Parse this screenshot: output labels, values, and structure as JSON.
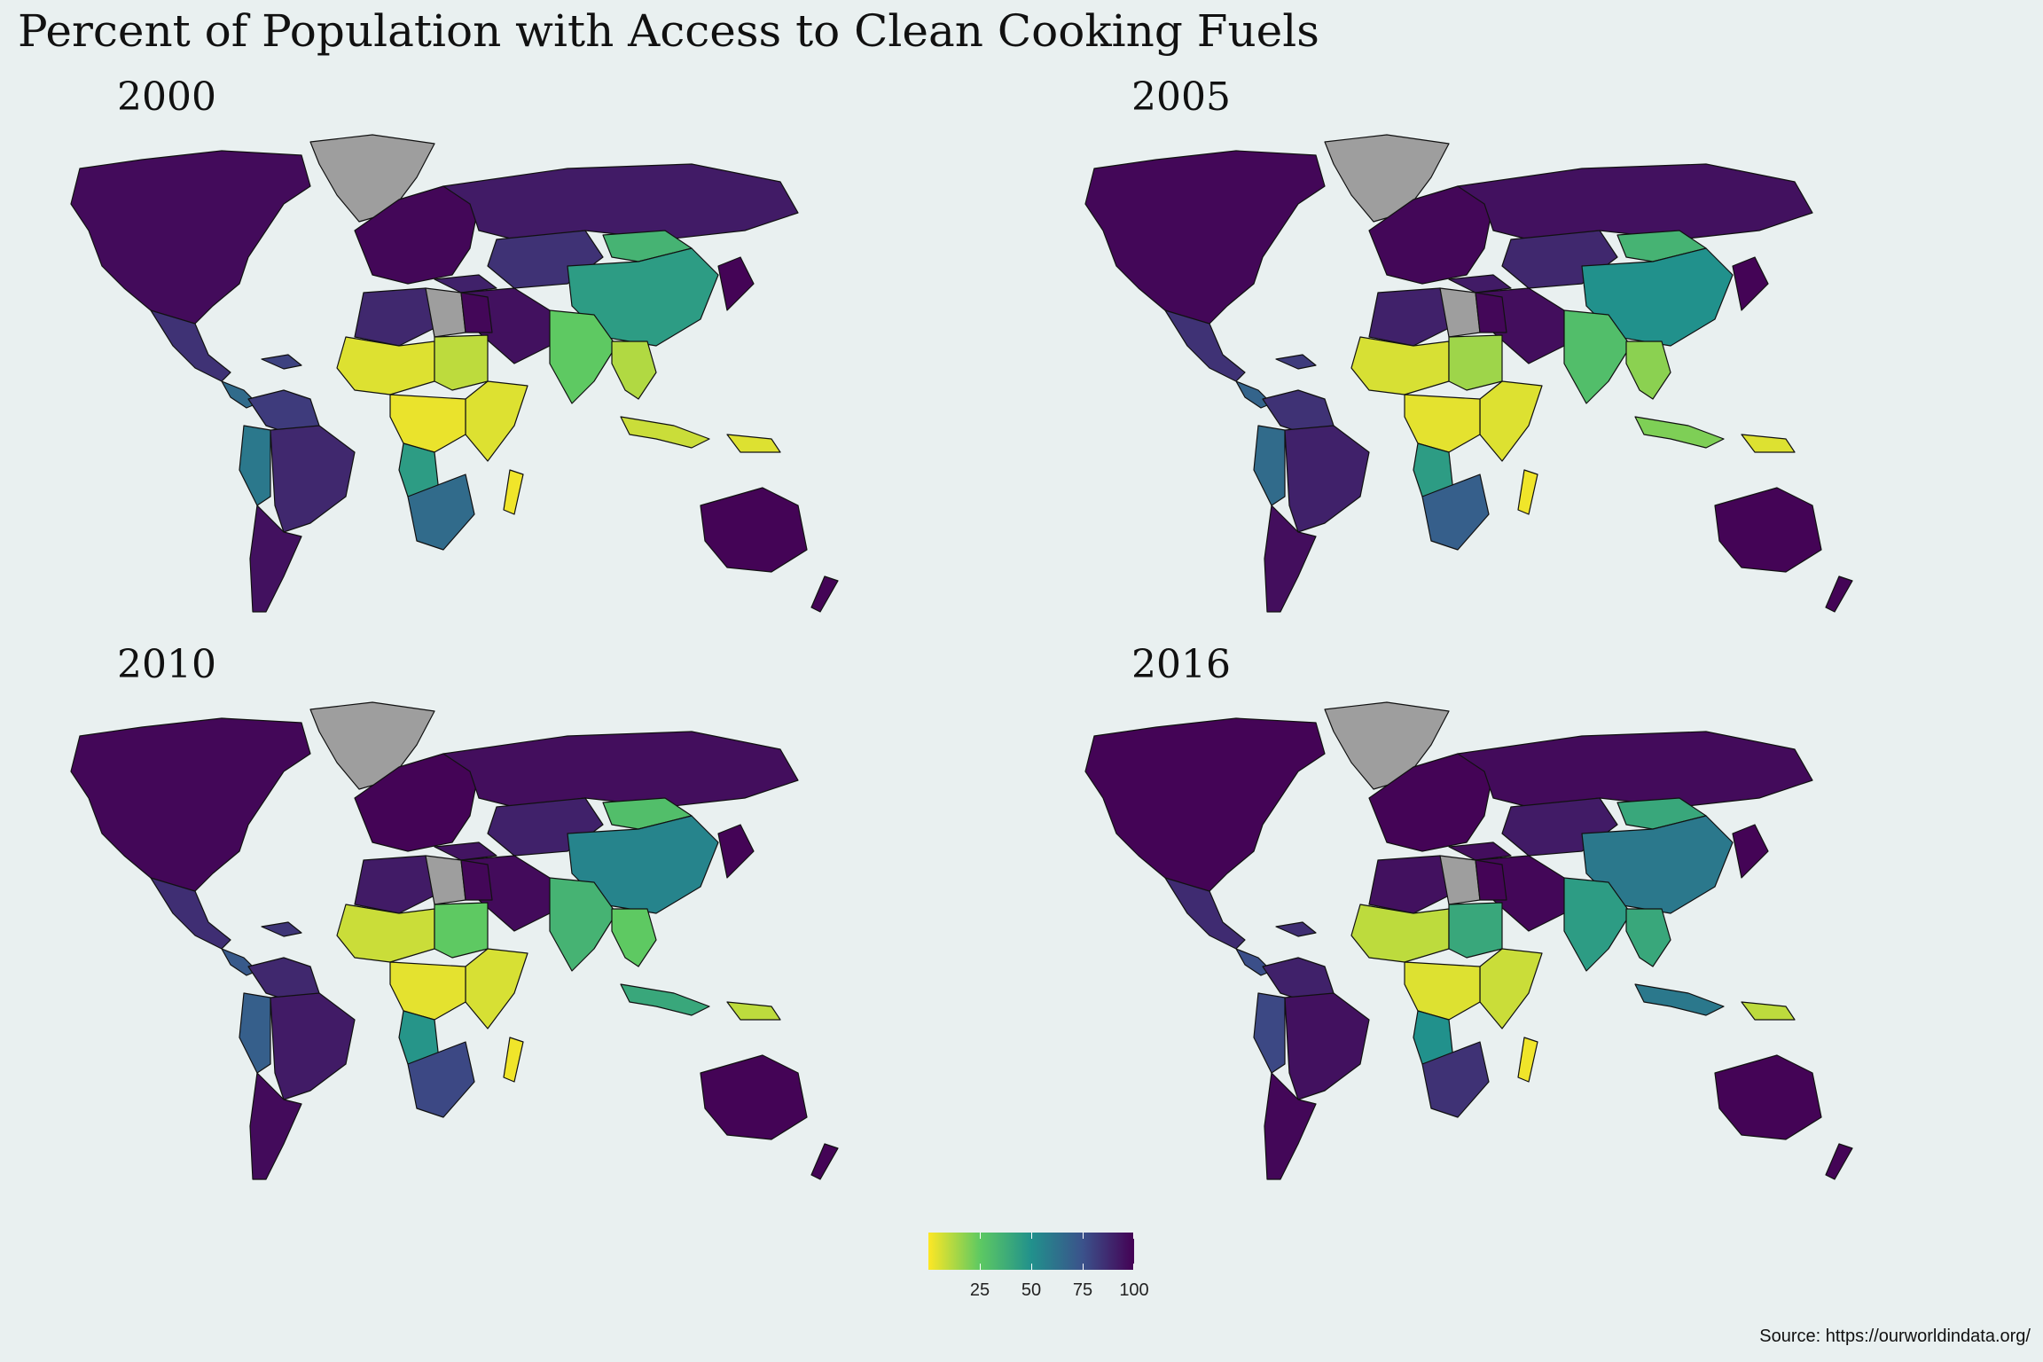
{
  "title": "Percent of Population with Access to Clean Cooking Fuels",
  "panels": [
    {
      "year": "2000",
      "levels": {
        "north_america": 97,
        "mexico": 85,
        "central_america": 65,
        "caribbean": 80,
        "south_america_north": 82,
        "brazil": 88,
        "andes": 60,
        "southern_cone": 95,
        "greenland": null,
        "europe": 98,
        "russia": 92,
        "north_africa_west": 88,
        "libya": null,
        "egypt": 98,
        "middle_east": 95,
        "turkey": 90,
        "central_asia": 85,
        "mongolia": 35,
        "china": 45,
        "korea_japan": 99,
        "south_asia": 25,
        "southeast_asia_mainland": 12,
        "indonesia": 8,
        "papua": 5,
        "sahel_west": 5,
        "sudan": 10,
        "east_africa": 5,
        "central_africa": 3,
        "angola": 45,
        "south_africa": 65,
        "madagascar": 2,
        "australia": 99,
        "new_zealand": 99
      }
    },
    {
      "year": "2005",
      "levels": {
        "north_america": 98,
        "mexico": 85,
        "central_america": 68,
        "caribbean": 82,
        "south_america_north": 85,
        "brazil": 90,
        "andes": 65,
        "southern_cone": 96,
        "greenland": null,
        "europe": 98,
        "russia": 95,
        "north_africa_west": 90,
        "libya": null,
        "egypt": 98,
        "middle_east": 96,
        "turkey": 92,
        "central_asia": 88,
        "mongolia": 35,
        "china": 50,
        "korea_japan": 99,
        "south_asia": 30,
        "southeast_asia_mainland": 18,
        "indonesia": 20,
        "papua": 5,
        "sahel_west": 6,
        "sudan": 15,
        "east_africa": 5,
        "central_africa": 4,
        "angola": 45,
        "south_africa": 70,
        "madagascar": 2,
        "australia": 99,
        "new_zealand": 99
      }
    },
    {
      "year": "2010",
      "levels": {
        "north_america": 98,
        "mexico": 86,
        "central_america": 72,
        "caribbean": 84,
        "south_america_north": 88,
        "brazil": 92,
        "andes": 70,
        "southern_cone": 97,
        "greenland": null,
        "europe": 99,
        "russia": 96,
        "north_africa_west": 92,
        "libya": null,
        "egypt": 98,
        "middle_east": 97,
        "turkey": 94,
        "central_asia": 90,
        "mongolia": 30,
        "china": 55,
        "korea_japan": 99,
        "south_asia": 35,
        "southeast_asia_mainland": 25,
        "indonesia": 40,
        "papua": 10,
        "sahel_west": 8,
        "sudan": 25,
        "east_africa": 6,
        "central_africa": 4,
        "angola": 48,
        "south_africa": 78,
        "madagascar": 2,
        "australia": 99,
        "new_zealand": 99
      }
    },
    {
      "year": "2016",
      "levels": {
        "north_america": 99,
        "mexico": 87,
        "central_america": 76,
        "caribbean": 86,
        "south_america_north": 90,
        "brazil": 95,
        "andes": 78,
        "southern_cone": 98,
        "greenland": null,
        "europe": 99,
        "russia": 97,
        "north_africa_west": 95,
        "libya": null,
        "egypt": 99,
        "middle_east": 98,
        "turkey": 96,
        "central_asia": 92,
        "mongolia": 40,
        "china": 60,
        "korea_japan": 99,
        "south_asia": 45,
        "southeast_asia_mainland": 40,
        "indonesia": 60,
        "papua": 10,
        "sahel_west": 10,
        "sudan": 40,
        "east_africa": 8,
        "central_africa": 5,
        "angola": 50,
        "south_africa": 85,
        "madagascar": 2,
        "australia": 99,
        "new_zealand": 99
      }
    }
  ],
  "legend": {
    "ticks": [
      {
        "value": 25,
        "label": "25"
      },
      {
        "value": 50,
        "label": "50"
      },
      {
        "value": 75,
        "label": "75"
      },
      {
        "value": 100,
        "label": "100"
      }
    ],
    "min": 0,
    "max": 100,
    "colors": [
      "#fde725",
      "#5ec962",
      "#21918c",
      "#3b528b",
      "#440154"
    ],
    "na_color": "#9e9e9e"
  },
  "source": "Source: https://ourworldindata.org/"
}
